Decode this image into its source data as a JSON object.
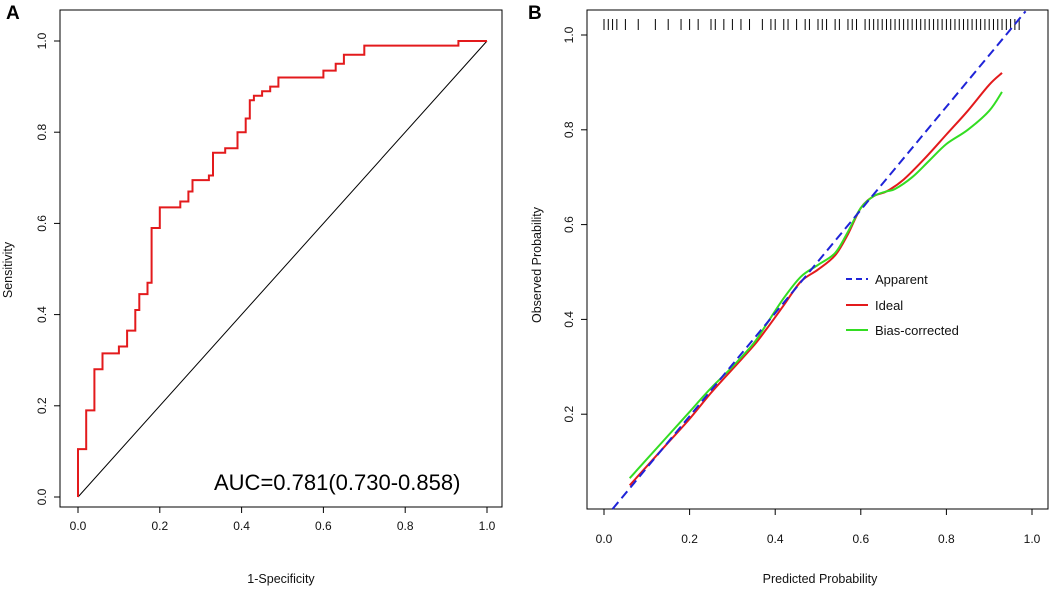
{
  "chart_data": [
    {
      "panel_label": "A",
      "type": "line",
      "title": "",
      "xlabel": "1-Specificity",
      "ylabel": "Sensitivity",
      "xlim": [
        0,
        1
      ],
      "ylim": [
        0,
        1
      ],
      "xticks": [
        "0.0",
        "0.2",
        "0.4",
        "0.6",
        "0.8",
        "1.0"
      ],
      "yticks": [
        "0.0",
        "0.2",
        "0.4",
        "0.6",
        "0.8",
        "1.0"
      ],
      "annotation": "AUC=0.781(0.730-0.858)",
      "colors": {
        "roc": "#e31a1c",
        "diagonal": "#000000"
      },
      "series": [
        {
          "name": "ROC",
          "points": [
            [
              0,
              0
            ],
            [
              0,
              0.105
            ],
            [
              0.02,
              0.105
            ],
            [
              0.02,
              0.19
            ],
            [
              0.04,
              0.19
            ],
            [
              0.04,
              0.28
            ],
            [
              0.06,
              0.28
            ],
            [
              0.06,
              0.315
            ],
            [
              0.1,
              0.315
            ],
            [
              0.1,
              0.33
            ],
            [
              0.12,
              0.33
            ],
            [
              0.12,
              0.365
            ],
            [
              0.14,
              0.365
            ],
            [
              0.14,
              0.41
            ],
            [
              0.15,
              0.41
            ],
            [
              0.15,
              0.445
            ],
            [
              0.17,
              0.445
            ],
            [
              0.17,
              0.47
            ],
            [
              0.18,
              0.47
            ],
            [
              0.18,
              0.59
            ],
            [
              0.2,
              0.59
            ],
            [
              0.2,
              0.635
            ],
            [
              0.25,
              0.635
            ],
            [
              0.25,
              0.648
            ],
            [
              0.27,
              0.648
            ],
            [
              0.27,
              0.67
            ],
            [
              0.28,
              0.67
            ],
            [
              0.28,
              0.695
            ],
            [
              0.32,
              0.695
            ],
            [
              0.32,
              0.705
            ],
            [
              0.33,
              0.705
            ],
            [
              0.33,
              0.755
            ],
            [
              0.36,
              0.755
            ],
            [
              0.36,
              0.765
            ],
            [
              0.39,
              0.765
            ],
            [
              0.39,
              0.8
            ],
            [
              0.41,
              0.8
            ],
            [
              0.41,
              0.83
            ],
            [
              0.42,
              0.83
            ],
            [
              0.42,
              0.87
            ],
            [
              0.43,
              0.87
            ],
            [
              0.43,
              0.88
            ],
            [
              0.45,
              0.88
            ],
            [
              0.45,
              0.89
            ],
            [
              0.47,
              0.89
            ],
            [
              0.47,
              0.9
            ],
            [
              0.49,
              0.9
            ],
            [
              0.49,
              0.92
            ],
            [
              0.6,
              0.92
            ],
            [
              0.6,
              0.935
            ],
            [
              0.63,
              0.935
            ],
            [
              0.63,
              0.95
            ],
            [
              0.65,
              0.95
            ],
            [
              0.65,
              0.97
            ],
            [
              0.7,
              0.97
            ],
            [
              0.7,
              0.99
            ],
            [
              0.93,
              0.99
            ],
            [
              0.93,
              1.0
            ],
            [
              1.0,
              1.0
            ]
          ]
        },
        {
          "name": "Reference",
          "points": [
            [
              0,
              0
            ],
            [
              1,
              1
            ]
          ]
        }
      ]
    },
    {
      "panel_label": "B",
      "type": "line",
      "title": "",
      "xlabel": "Predicted Probability",
      "ylabel": "Observed Probability",
      "xlim": [
        0,
        1.05
      ],
      "ylim": [
        0,
        1.05
      ],
      "xticks": [
        "0.0",
        "0.2",
        "0.4",
        "0.6",
        "0.8",
        "1.0"
      ],
      "yticks": [
        "0.2",
        "0.4",
        "0.6",
        "0.8",
        "1.0"
      ],
      "legend_position": "center",
      "colors": {
        "apparent": "#1f24d8",
        "ideal": "#e31a1c",
        "bias": "#33dd22",
        "rug": "#000000"
      },
      "series": [
        {
          "name": "Apparent",
          "style": "dashed",
          "points": [
            [
              0.02,
              0
            ],
            [
              0.985,
              1.05
            ]
          ]
        },
        {
          "name": "Ideal",
          "style": "solid",
          "points": [
            [
              0.06,
              0.05
            ],
            [
              0.1,
              0.09
            ],
            [
              0.15,
              0.14
            ],
            [
              0.2,
              0.19
            ],
            [
              0.25,
              0.245
            ],
            [
              0.3,
              0.295
            ],
            [
              0.35,
              0.345
            ],
            [
              0.38,
              0.38
            ],
            [
              0.42,
              0.43
            ],
            [
              0.46,
              0.48
            ],
            [
              0.5,
              0.505
            ],
            [
              0.54,
              0.535
            ],
            [
              0.57,
              0.58
            ],
            [
              0.6,
              0.635
            ],
            [
              0.63,
              0.66
            ],
            [
              0.66,
              0.67
            ],
            [
              0.7,
              0.695
            ],
            [
              0.75,
              0.74
            ],
            [
              0.8,
              0.79
            ],
            [
              0.85,
              0.84
            ],
            [
              0.9,
              0.895
            ],
            [
              0.93,
              0.92
            ]
          ]
        },
        {
          "name": "Bias-corrected",
          "style": "solid",
          "points": [
            [
              0.06,
              0.065
            ],
            [
              0.1,
              0.105
            ],
            [
              0.15,
              0.155
            ],
            [
              0.2,
              0.205
            ],
            [
              0.25,
              0.255
            ],
            [
              0.3,
              0.3
            ],
            [
              0.35,
              0.35
            ],
            [
              0.38,
              0.39
            ],
            [
              0.42,
              0.445
            ],
            [
              0.46,
              0.49
            ],
            [
              0.5,
              0.515
            ],
            [
              0.54,
              0.54
            ],
            [
              0.57,
              0.585
            ],
            [
              0.6,
              0.635
            ],
            [
              0.63,
              0.66
            ],
            [
              0.66,
              0.67
            ],
            [
              0.68,
              0.675
            ],
            [
              0.72,
              0.7
            ],
            [
              0.76,
              0.735
            ],
            [
              0.8,
              0.77
            ],
            [
              0.85,
              0.8
            ],
            [
              0.9,
              0.84
            ],
            [
              0.93,
              0.88
            ]
          ]
        }
      ],
      "rug_x": [
        0.0,
        0.01,
        0.02,
        0.03,
        0.05,
        0.08,
        0.12,
        0.15,
        0.18,
        0.2,
        0.22,
        0.25,
        0.26,
        0.28,
        0.3,
        0.32,
        0.34,
        0.37,
        0.39,
        0.4,
        0.42,
        0.43,
        0.45,
        0.47,
        0.48,
        0.5,
        0.51,
        0.52,
        0.54,
        0.55,
        0.57,
        0.58,
        0.59,
        0.61,
        0.62,
        0.63,
        0.64,
        0.65,
        0.66,
        0.67,
        0.68,
        0.69,
        0.7,
        0.71,
        0.72,
        0.73,
        0.74,
        0.75,
        0.76,
        0.77,
        0.78,
        0.79,
        0.8,
        0.81,
        0.82,
        0.83,
        0.84,
        0.85,
        0.86,
        0.87,
        0.88,
        0.89,
        0.9,
        0.91,
        0.92,
        0.93,
        0.94,
        0.95,
        0.96,
        0.97
      ]
    }
  ]
}
